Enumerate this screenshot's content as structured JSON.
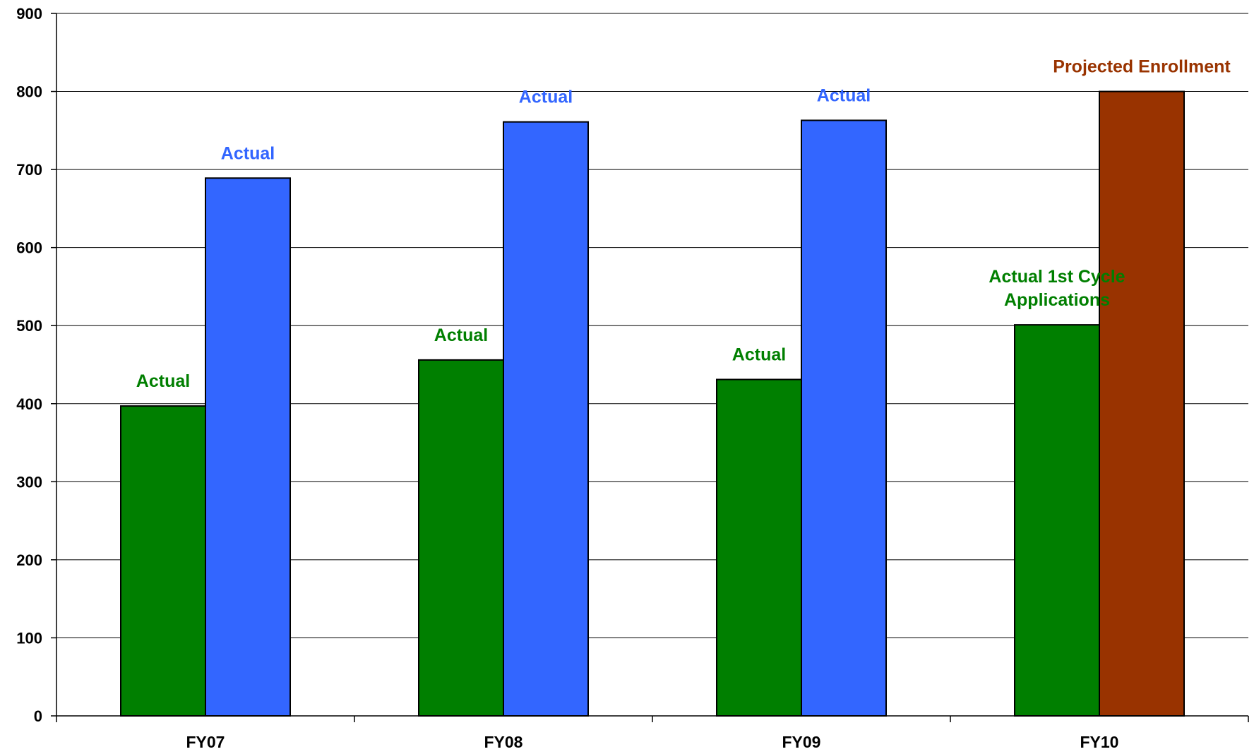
{
  "chart_data": {
    "type": "bar",
    "categories": [
      "FY07",
      "FY08",
      "FY09",
      "FY10"
    ],
    "ylim": [
      0,
      900
    ],
    "yticks": [
      0,
      100,
      200,
      300,
      400,
      500,
      600,
      700,
      800,
      900
    ],
    "grid": true,
    "legend": "none",
    "title": "",
    "xlabel": "",
    "ylabel": "",
    "bars": [
      {
        "category": "FY07",
        "value": 397,
        "color": "#007f00",
        "label": "Actual"
      },
      {
        "category": "FY07",
        "value": 689,
        "color": "#3366ff",
        "label": "Actual"
      },
      {
        "category": "FY08",
        "value": 456,
        "color": "#007f00",
        "label": "Actual"
      },
      {
        "category": "FY08",
        "value": 761,
        "color": "#3366ff",
        "label": "Actual"
      },
      {
        "category": "FY09",
        "value": 431,
        "color": "#007f00",
        "label": "Actual"
      },
      {
        "category": "FY09",
        "value": 763,
        "color": "#3366ff",
        "label": "Actual"
      },
      {
        "category": "FY10",
        "value": 501,
        "color": "#007f00",
        "label": "Actual 1st Cycle Applications",
        "label_lines": [
          "Actual 1st Cycle",
          "Applications"
        ]
      },
      {
        "category": "FY10",
        "value": 800,
        "color": "#993300",
        "label": "Projected Enrollment"
      }
    ]
  }
}
